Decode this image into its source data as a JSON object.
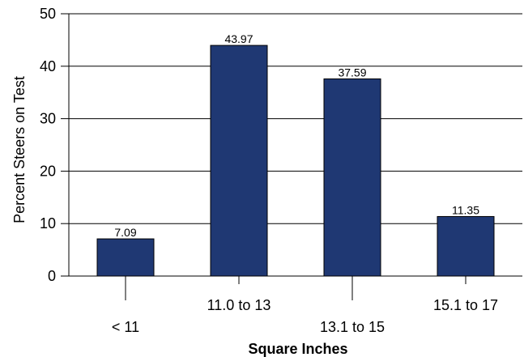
{
  "chart_data": {
    "type": "bar",
    "categories": [
      "< 11",
      "11.0 to 13",
      "13.1 to 15",
      "15.1 to 17"
    ],
    "values": [
      7.09,
      43.97,
      37.59,
      11.35
    ],
    "data_labels": [
      "7.09",
      "43.97",
      "37.59",
      "11.35"
    ],
    "xlabel": "Square Inches",
    "ylabel": "Percent Steers on Test",
    "ylim": [
      0,
      50
    ],
    "yticks": [
      0,
      10,
      20,
      30,
      40,
      50
    ],
    "ytick_labels": [
      "0",
      "10",
      "20",
      "30",
      "40",
      "50"
    ],
    "grid": true,
    "legend": "none",
    "bar_color": "#1f3873",
    "bar_edge_color": "#000000",
    "category_label_stagger": "alternating"
  }
}
